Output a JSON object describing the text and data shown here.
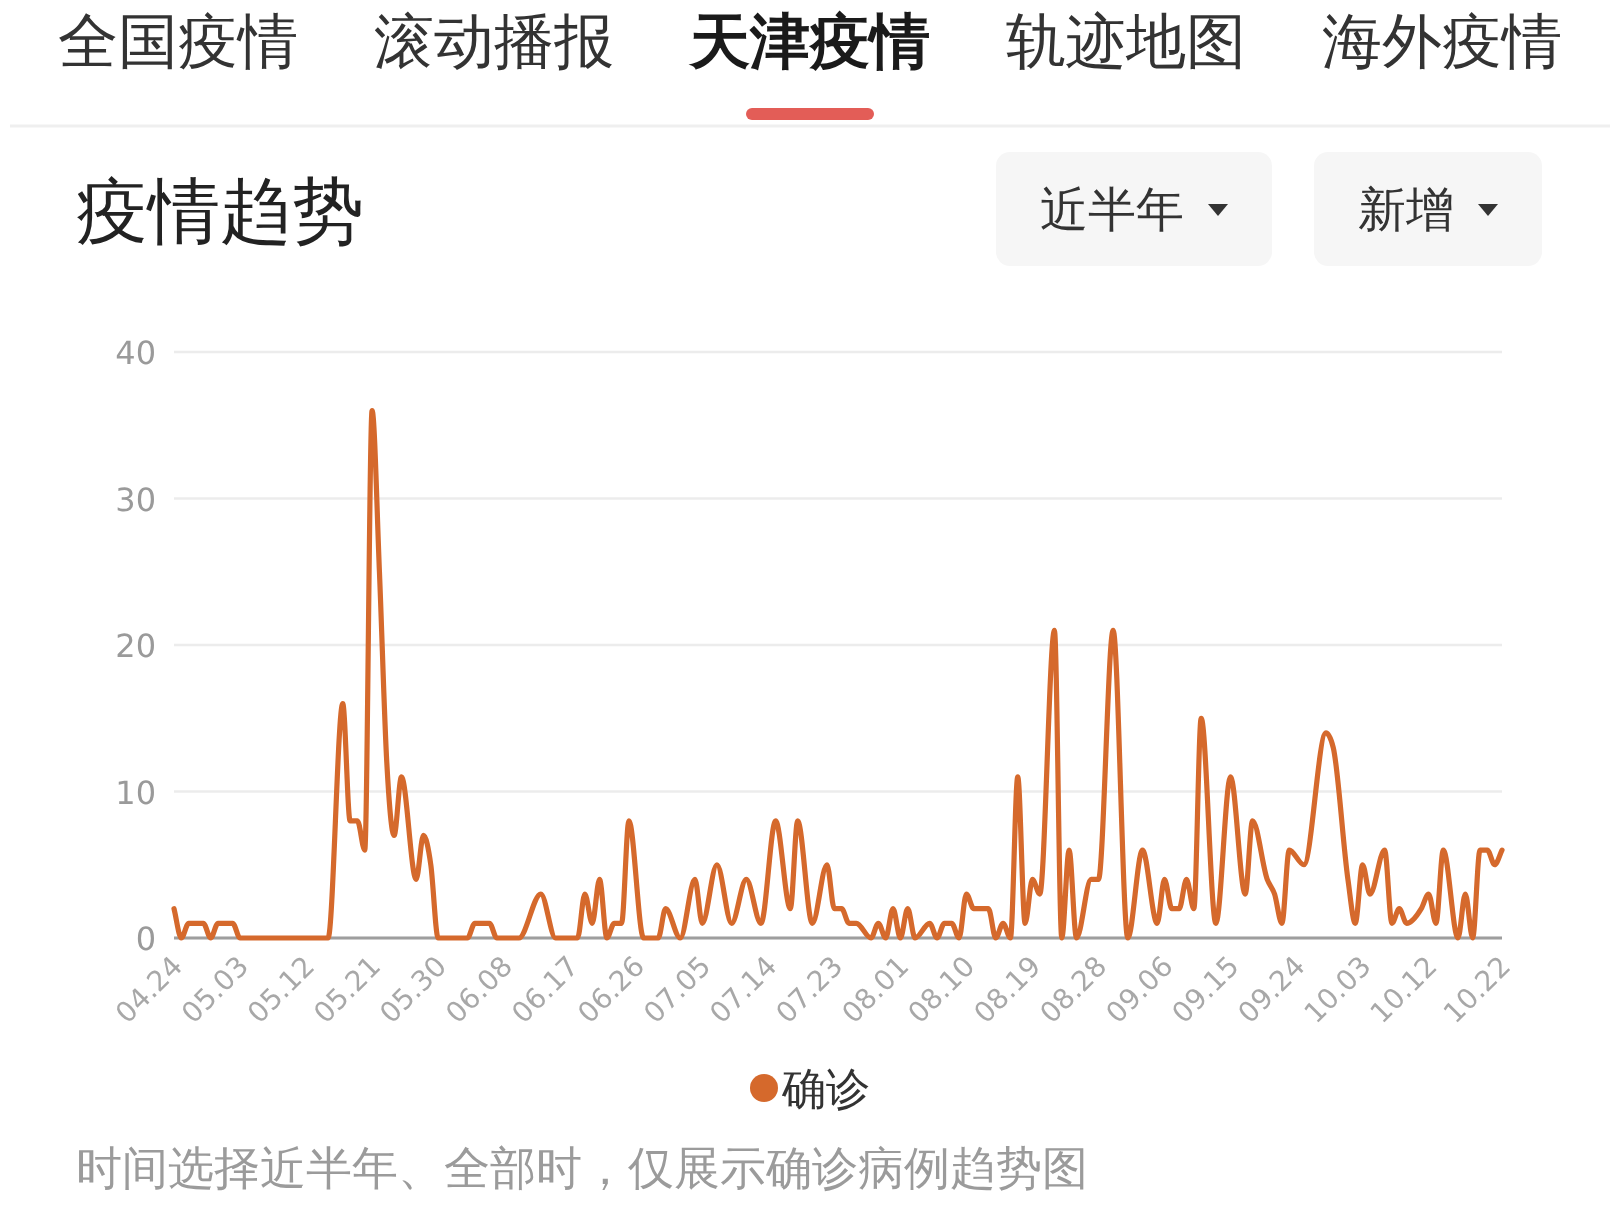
{
  "chart_data": {
    "type": "line",
    "title": "疫情趋势",
    "annotations": [
      "全国疫情",
      "滚动播报",
      "天津疫情",
      "轨迹地图",
      "海外疫情",
      "近半年",
      "新增",
      "时间选择近半年、全部时，仅展示确诊病例趋势图"
    ],
    "x": [
      "--04-24",
      "--04-25",
      "--04-26",
      "--04-28",
      "--04-29",
      "--04-30",
      "--05-02",
      "--05-03",
      "--05-15",
      "--05-17",
      "--05-18",
      "--05-19",
      "--05-20",
      "--05-21",
      "--05-22",
      "--05-23",
      "--05-24",
      "--05-25",
      "--05-27",
      "--05-28",
      "--05-29",
      "--05-30",
      "--06-03",
      "--06-04",
      "--06-06",
      "--06-07",
      "--06-10",
      "--06-13",
      "--06-15",
      "--06-18",
      "--06-19",
      "--06-20",
      "--06-21",
      "--06-22",
      "--06-23",
      "--06-24",
      "--06-25",
      "--06-27",
      "--06-29",
      "--06-30",
      "--07-02",
      "--07-04",
      "--07-05",
      "--07-07",
      "--07-09",
      "--07-11",
      "--07-13",
      "--07-15",
      "--07-17",
      "--07-18",
      "--07-20",
      "--07-22",
      "--07-23",
      "--07-24",
      "--07-25",
      "--07-26",
      "--07-28",
      "--07-29",
      "--07-30",
      "--07-31",
      "--08-01",
      "--08-02",
      "--08-03",
      "--08-05",
      "--08-06",
      "--08-07",
      "--08-08",
      "--08-09",
      "--08-10",
      "--08-11",
      "--08-13",
      "--08-14",
      "--08-15",
      "--08-16",
      "--08-17",
      "--08-18",
      "--08-19",
      "--08-20",
      "--08-22",
      "--08-23",
      "--08-24",
      "--08-25",
      "--08-27",
      "--08-28",
      "--08-30",
      "--09-01",
      "--09-03",
      "--09-05",
      "--09-06",
      "--09-07",
      "--09-08",
      "--09-09",
      "--09-10",
      "--09-11",
      "--09-13",
      "--09-15",
      "--09-17",
      "--09-18",
      "--09-20",
      "--09-21",
      "--09-22",
      "--09-23",
      "--09-25",
      "--09-28",
      "--09-29",
      "--10-01",
      "--10-02",
      "--10-03",
      "--10-04",
      "--10-06",
      "--10-07",
      "--10-08",
      "--10-09",
      "--10-11",
      "--10-12",
      "--10-13",
      "--10-14",
      "--10-16",
      "--10-17",
      "--10-18",
      "--10-19",
      "--10-20",
      "--10-21",
      "--10-22"
    ],
    "series": [
      {
        "name": "确诊",
        "color": "#d5692c",
        "values": [
          2,
          0,
          1,
          1,
          0,
          1,
          1,
          0,
          0,
          16,
          8,
          8,
          6,
          36,
          25,
          12,
          7,
          11,
          4,
          7,
          5,
          0,
          0,
          1,
          1,
          0,
          0,
          3,
          0,
          0,
          3,
          1,
          4,
          0,
          1,
          1,
          8,
          0,
          0,
          2,
          0,
          4,
          1,
          5,
          1,
          4,
          1,
          8,
          2,
          8,
          1,
          5,
          2,
          2,
          1,
          1,
          0,
          1,
          0,
          2,
          0,
          2,
          0,
          1,
          0,
          1,
          1,
          0,
          3,
          2,
          2,
          0,
          1,
          0,
          11,
          1,
          4,
          3,
          21,
          0,
          6,
          0,
          4,
          4,
          21,
          0,
          6,
          1,
          4,
          2,
          2,
          4,
          2,
          15,
          1,
          11,
          3,
          8,
          4,
          3,
          1,
          6,
          5,
          14,
          13,
          4,
          1,
          5,
          3,
          6,
          1,
          2,
          1,
          2,
          3,
          1,
          6,
          0,
          3,
          0,
          6,
          6,
          5,
          6
        ]
      }
    ],
    "xlim": [
      "--04-24",
      "--10-22"
    ],
    "xticks": [
      {
        "value": "--04-24",
        "label": "04.24"
      },
      {
        "value": "--05-03",
        "label": "05.03"
      },
      {
        "value": "--05-12",
        "label": "05.12"
      },
      {
        "value": "--05-21",
        "label": "05.21"
      },
      {
        "value": "--05-30",
        "label": "05.30"
      },
      {
        "value": "--06-08",
        "label": "06.08"
      },
      {
        "value": "--06-17",
        "label": "06.17"
      },
      {
        "value": "--06-26",
        "label": "06.26"
      },
      {
        "value": "--07-05",
        "label": "07.05"
      },
      {
        "value": "--07-14",
        "label": "07.14"
      },
      {
        "value": "--07-23",
        "label": "07.23"
      },
      {
        "value": "--08-01",
        "label": "08.01"
      },
      {
        "value": "--08-10",
        "label": "08.10"
      },
      {
        "value": "--08-19",
        "label": "08.19"
      },
      {
        "value": "--08-28",
        "label": "08.28"
      },
      {
        "value": "--09-06",
        "label": "09.06"
      },
      {
        "value": "--09-15",
        "label": "09.15"
      },
      {
        "value": "--09-24",
        "label": "09.24"
      },
      {
        "value": "--10-03",
        "label": "10.03"
      },
      {
        "value": "--10-12",
        "label": "10.12"
      },
      {
        "value": "--10-22",
        "label": "10.22"
      }
    ],
    "ylim": [
      0,
      40
    ],
    "yticks": [
      0,
      10,
      20,
      30,
      40
    ],
    "grid": "y",
    "legend": "bottom"
  }
}
